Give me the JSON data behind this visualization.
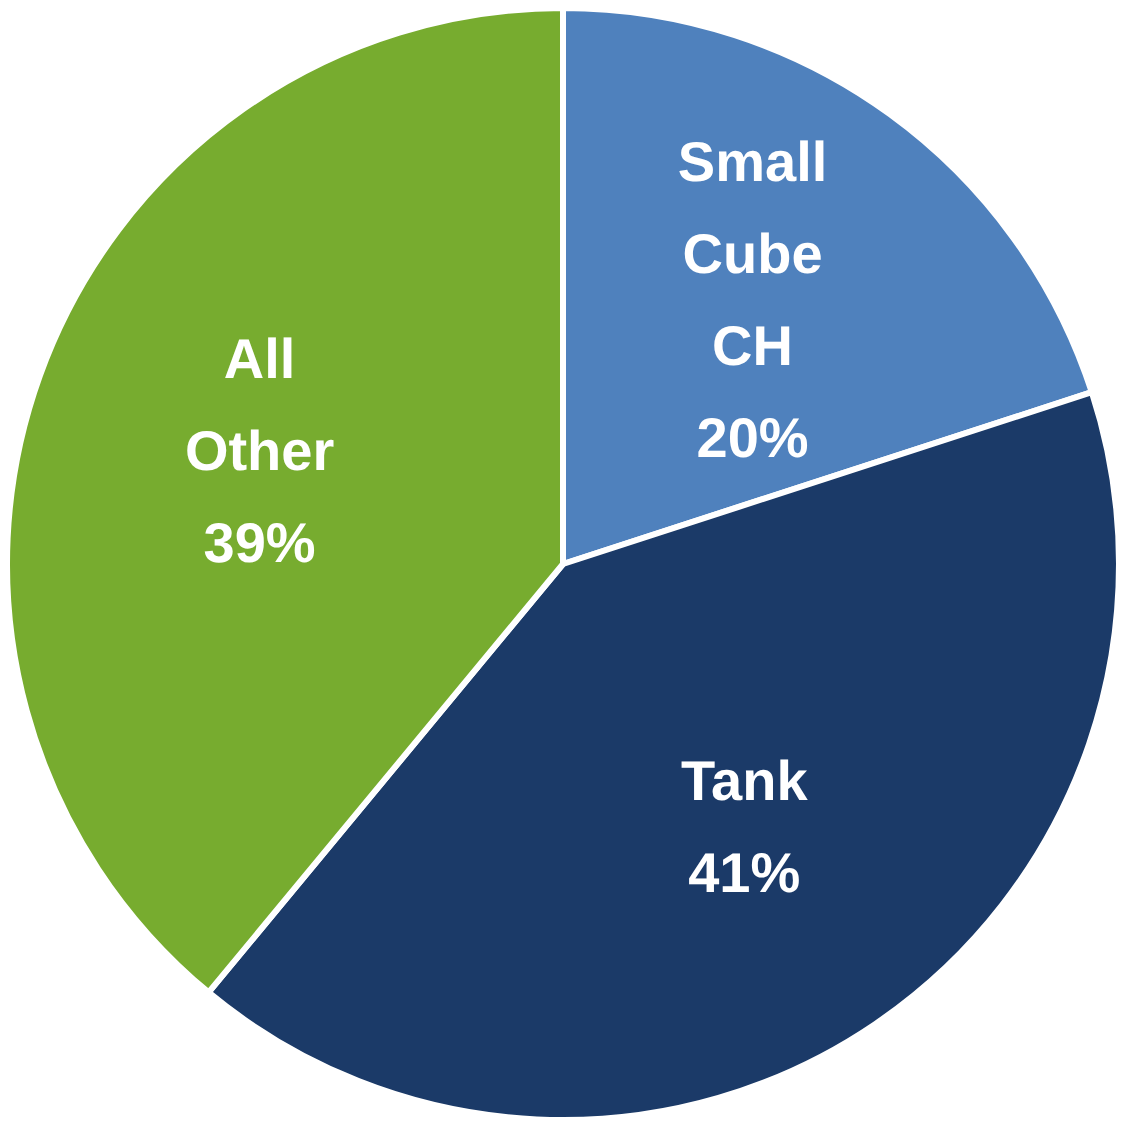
{
  "chart_data": {
    "type": "pie",
    "categories": [
      "Small Cube CH",
      "Tank",
      "All Other"
    ],
    "values": [
      20,
      41,
      39
    ],
    "colors": [
      "#4f81bd",
      "#1b3a68",
      "#77ac2f"
    ],
    "value_labels": [
      "20%",
      "41%",
      "39%"
    ],
    "legend": false
  }
}
